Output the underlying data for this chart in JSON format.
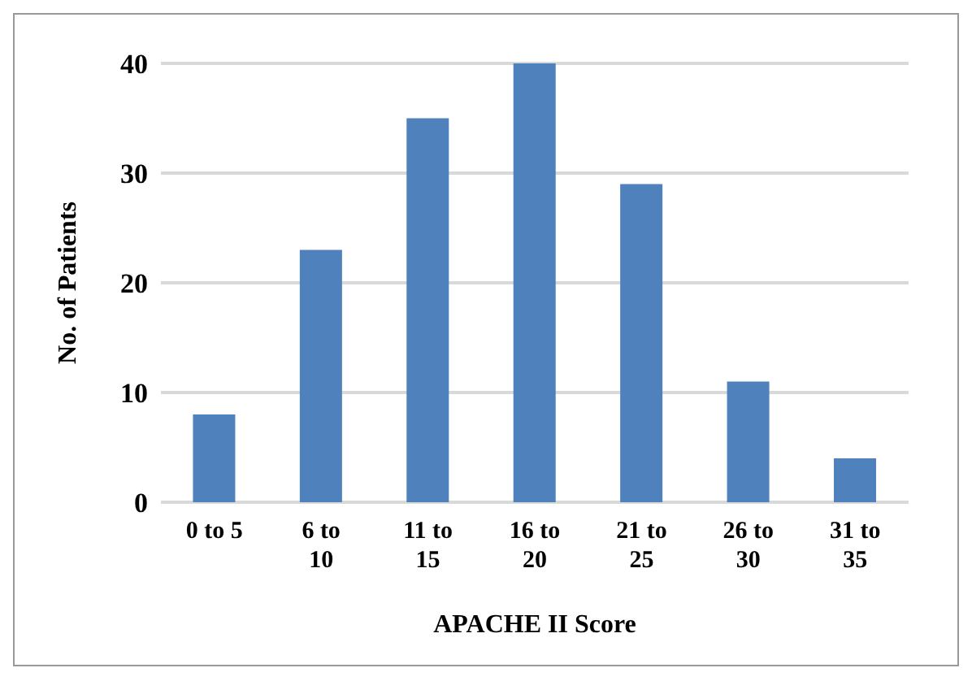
{
  "chart_data": {
    "type": "bar",
    "xlabel": "APACHE II Score",
    "ylabel": "No. of Patients",
    "categories": [
      "0 to 5",
      "6 to 10",
      "11 to 15",
      "16 to 20",
      "21 to 25",
      "26 to 30",
      "31 to 35"
    ],
    "values": [
      8,
      23,
      35,
      40,
      29,
      11,
      4
    ],
    "color": "#4f81bd",
    "ylim": [
      0,
      40
    ],
    "yticks": [
      0,
      10,
      20,
      30,
      40
    ],
    "grid": "y"
  }
}
